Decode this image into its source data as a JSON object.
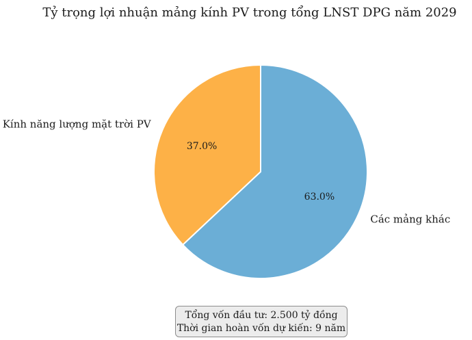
{
  "chart_data": {
    "type": "pie",
    "title": "Tỷ trọng lợi nhuận mảng kính PV trong tổng LNST DPG năm 2029",
    "slices": [
      {
        "label": "Các mảng khác",
        "value": 63.0,
        "pct_label": "63.0%",
        "color": "#6baed6"
      },
      {
        "label": "Kính năng lượng mặt trời PV",
        "value": 37.0,
        "pct_label": "37.0%",
        "color": "#fdb147"
      }
    ],
    "start_angle_deg": 90,
    "direction": "clockwise",
    "edge_color": "#ffffff"
  },
  "note": {
    "line1": "Tổng vốn đầu tư: 2.500 tỷ đồng",
    "line2": "Thời gian hoàn vốn dự kiến: 9 năm"
  }
}
